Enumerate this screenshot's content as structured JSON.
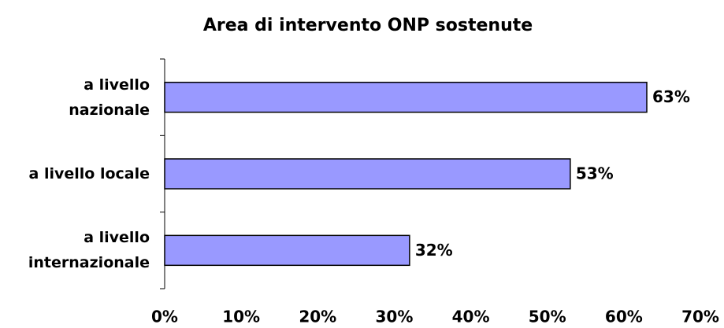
{
  "chart_data": {
    "type": "bar",
    "orientation": "horizontal",
    "title": "Area di intervento ONP sostenute",
    "categories": [
      "a livello\nnazionale",
      "a livello locale",
      "a livello\ninternazionale"
    ],
    "values": [
      63,
      53,
      32
    ],
    "value_labels": [
      "63%",
      "53%",
      "32%"
    ],
    "color": "#9999ff",
    "xlim": [
      0,
      70
    ],
    "xticks": [
      {
        "value": 0,
        "label": "0%"
      },
      {
        "value": 10,
        "label": "10%"
      },
      {
        "value": 20,
        "label": "20%"
      },
      {
        "value": 30,
        "label": "30%"
      },
      {
        "value": 40,
        "label": "40%"
      },
      {
        "value": 50,
        "label": "50%"
      },
      {
        "value": 60,
        "label": "60%"
      },
      {
        "value": 70,
        "label": "70%"
      }
    ],
    "grid": false
  }
}
